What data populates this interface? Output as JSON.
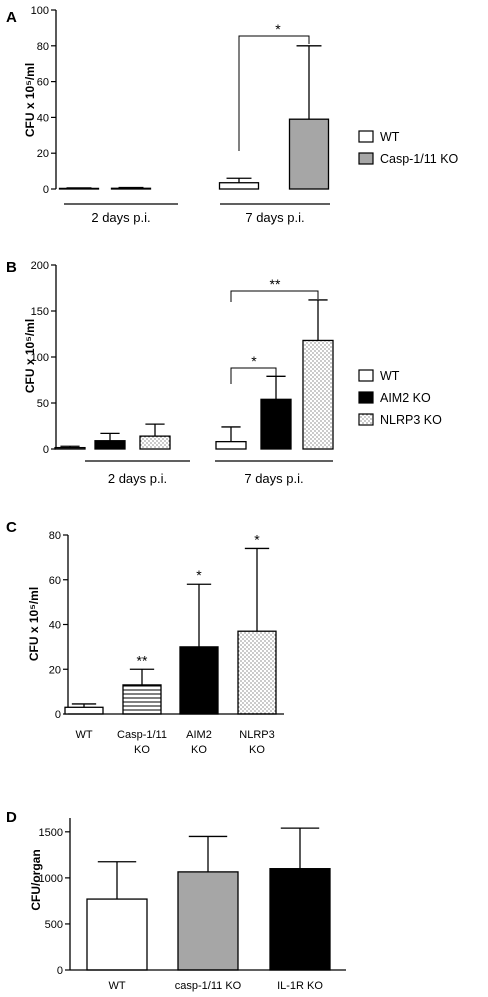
{
  "chart_data": [
    {
      "panel": "A",
      "type": "bar",
      "ylabel": "CFU x 10⁵/ml",
      "ylim": [
        0,
        100
      ],
      "yticks": [
        0,
        20,
        40,
        60,
        80,
        100
      ],
      "groups": [
        "2 days p.i.",
        "7 days p.i."
      ],
      "series": [
        {
          "name": "WT",
          "values": [
            0.3,
            3.5
          ],
          "errors": [
            0.3,
            2.5
          ],
          "fill": "#ffffff",
          "pattern": "none"
        },
        {
          "name": "Casp-1/11 KO",
          "values": [
            0.4,
            39
          ],
          "errors": [
            0.4,
            41
          ],
          "fill": "#a6a6a6",
          "pattern": "none"
        }
      ],
      "significance": [
        {
          "label": "*",
          "group": 1
        }
      ],
      "legend": "right"
    },
    {
      "panel": "B",
      "type": "bar",
      "ylabel": "CFU x 10⁵/ml",
      "ylim": [
        0,
        200
      ],
      "yticks": [
        0,
        50,
        100,
        150,
        200
      ],
      "groups": [
        "2 days p.i.",
        "7 days p.i."
      ],
      "series": [
        {
          "name": "WT",
          "values": [
            1.5,
            8
          ],
          "errors": [
            1.5,
            16
          ],
          "fill": "#ffffff",
          "pattern": "none"
        },
        {
          "name": "AIM2 KO",
          "values": [
            9,
            54
          ],
          "errors": [
            8,
            25
          ],
          "fill": "#000000",
          "pattern": "none"
        },
        {
          "name": "NLRP3 KO",
          "values": [
            14,
            118
          ],
          "errors": [
            13,
            44
          ],
          "fill": "#ffffff",
          "pattern": "dots"
        }
      ],
      "significance": [
        {
          "label": "*",
          "from": 0,
          "to": 1
        },
        {
          "label": "**",
          "from": 0,
          "to": 2
        }
      ],
      "legend": "right"
    },
    {
      "panel": "C",
      "type": "bar",
      "ylabel": "CFU x 10⁵/ml",
      "ylim": [
        0,
        80
      ],
      "yticks": [
        0,
        20,
        40,
        60,
        80
      ],
      "categories": [
        "WT",
        "Casp-1/11\nKO",
        "AIM2\nKO",
        "NLRP3\nKO"
      ],
      "values": [
        3,
        13,
        30,
        37
      ],
      "errors": [
        1.5,
        7,
        28,
        37
      ],
      "fills": [
        "#ffffff",
        "#ffffff",
        "#000000",
        "#ffffff"
      ],
      "patterns": [
        "none",
        "hlines",
        "none",
        "dots"
      ],
      "significance": [
        "",
        "**",
        "*",
        "*"
      ]
    },
    {
      "panel": "D",
      "type": "bar",
      "ylabel": "CFU/organ",
      "ylim": [
        0,
        1650
      ],
      "yticks": [
        0,
        500,
        1000,
        1500
      ],
      "categories": [
        "WT",
        "casp-1/11 KO",
        "IL-1R KO"
      ],
      "values": [
        770,
        1065,
        1100
      ],
      "errors": [
        405,
        385,
        440
      ],
      "fills": [
        "#ffffff",
        "#a6a6a6",
        "#000000"
      ],
      "patterns": [
        "none",
        "none",
        "none"
      ]
    }
  ]
}
